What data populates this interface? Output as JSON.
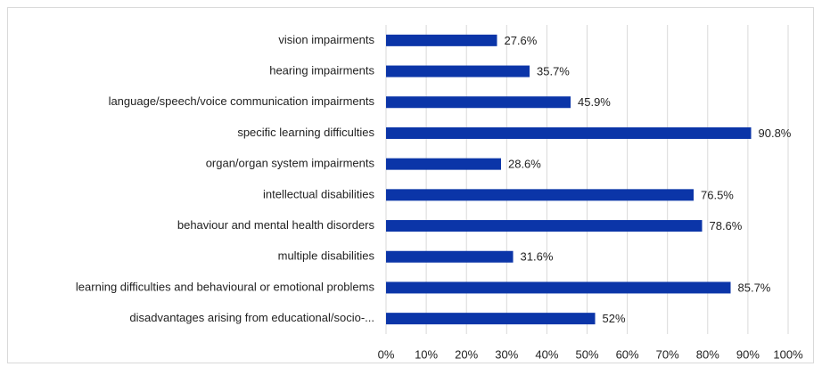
{
  "chart_data": {
    "type": "bar",
    "orientation": "horizontal",
    "categories": [
      "vision impairments",
      "hearing impairments",
      "language/speech/voice communication impairments",
      "specific learning difficulties",
      "organ/organ system impairments",
      "intellectual disabilities",
      "behaviour and mental health disorders",
      "multiple disabilities",
      "learning difficulties and behavioural or emotional problems",
      "disadvantages arising from educational/socio-..."
    ],
    "values": [
      27.6,
      35.7,
      45.9,
      90.8,
      28.6,
      76.5,
      78.6,
      31.6,
      85.7,
      52
    ],
    "value_labels": [
      "27.6%",
      "35.7%",
      "45.9%",
      "90.8%",
      "28.6%",
      "76.5%",
      "78.6%",
      "31.6%",
      "85.7%",
      "52%"
    ],
    "color": "#0b35a8",
    "xlim": [
      0,
      100
    ],
    "xticks": [
      {
        "value": 0,
        "label": "0%"
      },
      {
        "value": 10,
        "label": "10%"
      },
      {
        "value": 20,
        "label": "20%"
      },
      {
        "value": 30,
        "label": "30%"
      },
      {
        "value": 40,
        "label": "40%"
      },
      {
        "value": 50,
        "label": "50%"
      },
      {
        "value": 60,
        "label": "60%"
      },
      {
        "value": 70,
        "label": "70%"
      },
      {
        "value": 80,
        "label": "80%"
      },
      {
        "value": 90,
        "label": "90%"
      },
      {
        "value": 100,
        "label": "100%"
      }
    ],
    "grid": true
  }
}
